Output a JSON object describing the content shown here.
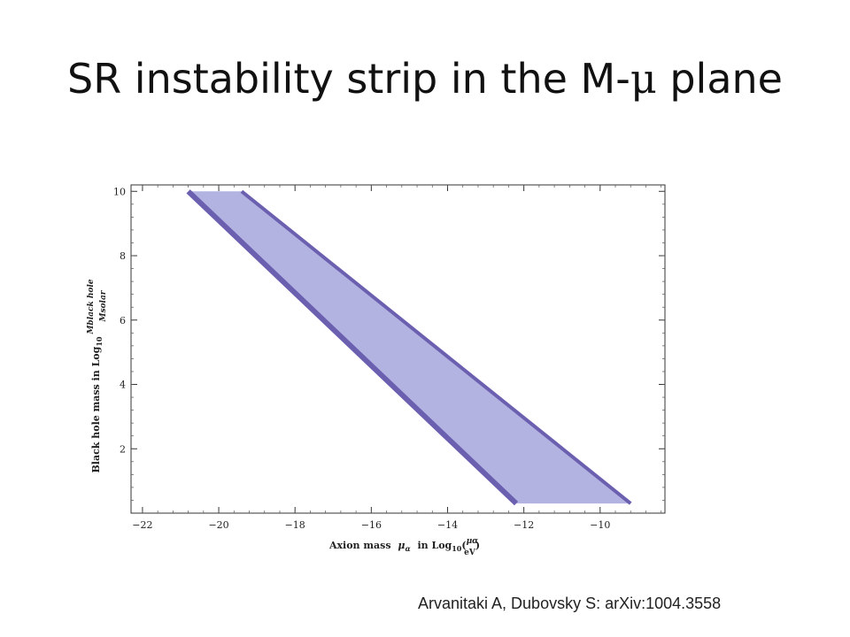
{
  "slide": {
    "title_prefix": "SR instability strip in the M-",
    "title_mu": "μ",
    "title_suffix": " plane",
    "citation": "Arvanitaki A, Dubovsky S:  arXiv:1004.3558"
  },
  "chart_data": {
    "type": "area",
    "title": "",
    "xlabel_text": "Axion mass",
    "xlabel_var": "μ",
    "xlabel_sub": "α",
    "xlabel_mid": "in Log",
    "xlabel_log_sub": "10",
    "xlabel_frac_num": "μα",
    "xlabel_frac_den": "eV",
    "ylabel_text": "Black hole mass in Log",
    "ylabel_log_sub": "10",
    "ylabel_frac_num": "Mblack hole",
    "ylabel_frac_den": "Msolar",
    "xlim": [
      -22.3,
      -8.3
    ],
    "ylim": [
      0.0,
      10.2
    ],
    "x_ticks": [
      -22,
      -20,
      -18,
      -16,
      -14,
      -12,
      -10
    ],
    "x_tick_labels": [
      "−22",
      "−20",
      "−18",
      "−16",
      "−14",
      "−12",
      "−10"
    ],
    "y_ticks": [
      2,
      4,
      6,
      8,
      10
    ],
    "y_tick_labels": [
      "2",
      "4",
      "6",
      "8",
      "10"
    ],
    "fill_color": "#b3b3e2",
    "edge_color": "#6b5fb0",
    "band": [
      [
        -20.8,
        10.0
      ],
      [
        -19.4,
        10.0
      ],
      [
        -9.2,
        0.3
      ],
      [
        -12.2,
        0.3
      ]
    ],
    "edge_lower": [
      [
        -20.8,
        10.0
      ],
      [
        -12.2,
        0.3
      ]
    ],
    "edge_upper": [
      [
        -19.4,
        10.0
      ],
      [
        -9.2,
        0.3
      ]
    ],
    "grid": false
  }
}
